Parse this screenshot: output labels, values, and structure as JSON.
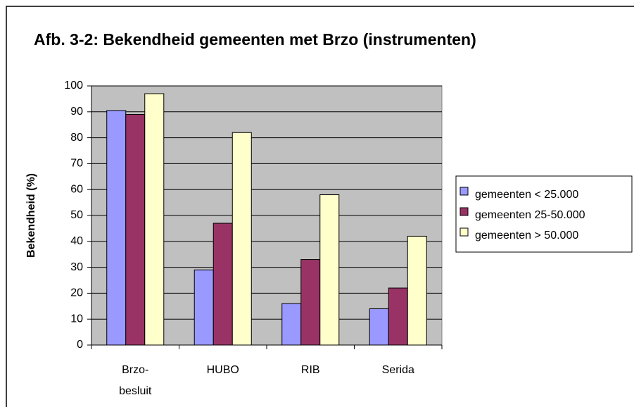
{
  "chart_data": {
    "type": "bar",
    "title": "Afb. 3-2: Bekendheid gemeenten met Brzo (instrumenten)",
    "ylabel": "Bekendheid (%)",
    "categories": [
      "Brzo-\nbesluit",
      "HUBO",
      "RIB",
      "Serida"
    ],
    "series": [
      {
        "name": "gemeenten < 25.000",
        "color": "#9999ff",
        "values": [
          90.5,
          29,
          16,
          14
        ]
      },
      {
        "name": "gemeenten 25-50.000",
        "color": "#993366",
        "values": [
          89,
          47,
          33,
          22
        ]
      },
      {
        "name": "gemeenten > 50.000",
        "color": "#ffffcc",
        "values": [
          97,
          82,
          58,
          42
        ]
      }
    ],
    "ylim": [
      0,
      100
    ],
    "yticks": [
      0,
      10,
      20,
      30,
      40,
      50,
      60,
      70,
      80,
      90,
      100
    ],
    "grid": true,
    "plot_background": "#c0c0c0",
    "legend": "right"
  }
}
